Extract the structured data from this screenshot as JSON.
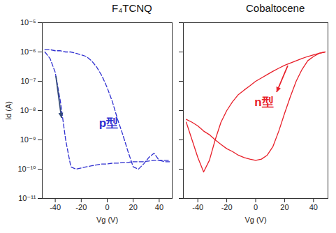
{
  "chart_data": [
    {
      "type": "line",
      "title": "F₄TCNQ",
      "annotation": "p型",
      "xlabel": "Vg (V)",
      "ylabel": "Id (A)",
      "x": [
        -48,
        -44,
        -40,
        -36,
        -32,
        -28,
        -24,
        -20,
        -16,
        -12,
        -8,
        -4,
        0,
        4,
        8,
        12,
        16,
        20,
        24,
        28,
        32,
        36,
        40,
        44,
        48
      ],
      "series": [
        {
          "color": "#2f2fd0",
          "line_style": "dashed",
          "values": [
            1e-06,
            6e-07,
            2e-07,
            2e-08,
            1e-09,
            1.2e-10,
            1e-10,
            1.1e-10,
            1.2e-10,
            1.3e-10,
            1.4e-10,
            1.5e-10,
            1.5e-10,
            1.6e-10,
            1.6e-10,
            1.7e-10,
            1.7e-10,
            1.8e-10,
            1.8e-10,
            1.8e-10,
            1.9e-10,
            2e-10,
            2e-10,
            2e-10,
            2e-10
          ]
        },
        {
          "color": "#2f2fd0",
          "line_style": "dashed",
          "values": [
            1.2e-06,
            1.2e-06,
            1.1e-06,
            1.1e-06,
            1e-06,
            1e-06,
            9e-07,
            8e-07,
            7e-07,
            5e-07,
            3e-07,
            1.5e-07,
            6e-08,
            2e-08,
            5e-09,
            1.5e-09,
            4e-10,
            1.2e-10,
            1e-10,
            1.5e-10,
            2.5e-10,
            3.5e-10,
            2e-10,
            1.8e-10,
            1.8e-10
          ]
        }
      ],
      "xlim": [
        -50,
        50
      ],
      "xticks": [
        -40,
        -20,
        0,
        20,
        40
      ],
      "ylim": [
        1e-11,
        1e-05
      ],
      "yticks": [
        {
          "value": 1e-11,
          "label": "10⁻¹¹"
        },
        {
          "value": 1e-10,
          "label": "10⁻¹⁰"
        },
        {
          "value": 1e-09,
          "label": "10⁻⁹"
        },
        {
          "value": 1e-08,
          "label": "10⁻⁸"
        },
        {
          "value": 1e-07,
          "label": "10⁻⁷"
        },
        {
          "value": 1e-06,
          "label": "10⁻⁶"
        },
        {
          "value": 1e-05,
          "label": "10⁻⁵"
        }
      ],
      "log": "y",
      "grid": false
    },
    {
      "type": "line",
      "title": "Cobaltocene",
      "annotation": "n型",
      "xlabel": "Vg (V)",
      "x": [
        -48,
        -44,
        -40,
        -36,
        -32,
        -28,
        -24,
        -20,
        -16,
        -12,
        -8,
        -4,
        0,
        4,
        8,
        12,
        16,
        20,
        24,
        28,
        32,
        36,
        40,
        44,
        48
      ],
      "series": [
        {
          "color": "#e8202a",
          "line_style": "solid",
          "values": [
            4e-09,
            1e-09,
            2.5e-10,
            8e-11,
            2e-10,
            1e-09,
            4e-09,
            1e-08,
            2e-08,
            3.5e-08,
            5e-08,
            7e-08,
            1e-07,
            1.3e-07,
            1.7e-07,
            2.2e-07,
            2.8e-07,
            3.5e-07,
            4.2e-07,
            5e-07,
            6e-07,
            7e-07,
            8e-07,
            9e-07,
            1e-06
          ]
        },
        {
          "color": "#e8202a",
          "line_style": "solid",
          "values": [
            5e-09,
            4e-09,
            3e-09,
            2e-09,
            1.5e-09,
            1e-09,
            7e-10,
            5e-10,
            4e-10,
            3e-10,
            2.5e-10,
            2.2e-10,
            2e-10,
            2.2e-10,
            3e-10,
            6e-10,
            2e-09,
            8e-09,
            3e-08,
            1e-07,
            2.5e-07,
            5e-07,
            7e-07,
            9e-07,
            1e-06
          ]
        }
      ],
      "xlim": [
        -50,
        50
      ],
      "xticks": [
        -40,
        -20,
        0,
        20,
        40
      ],
      "ylim": [
        1e-11,
        1e-05
      ],
      "yticks": [
        1e-11,
        1e-10,
        1e-09,
        1e-08,
        1e-07,
        1e-06,
        1e-05
      ],
      "log": "y",
      "grid": false,
      "tick_labels": "x"
    }
  ]
}
